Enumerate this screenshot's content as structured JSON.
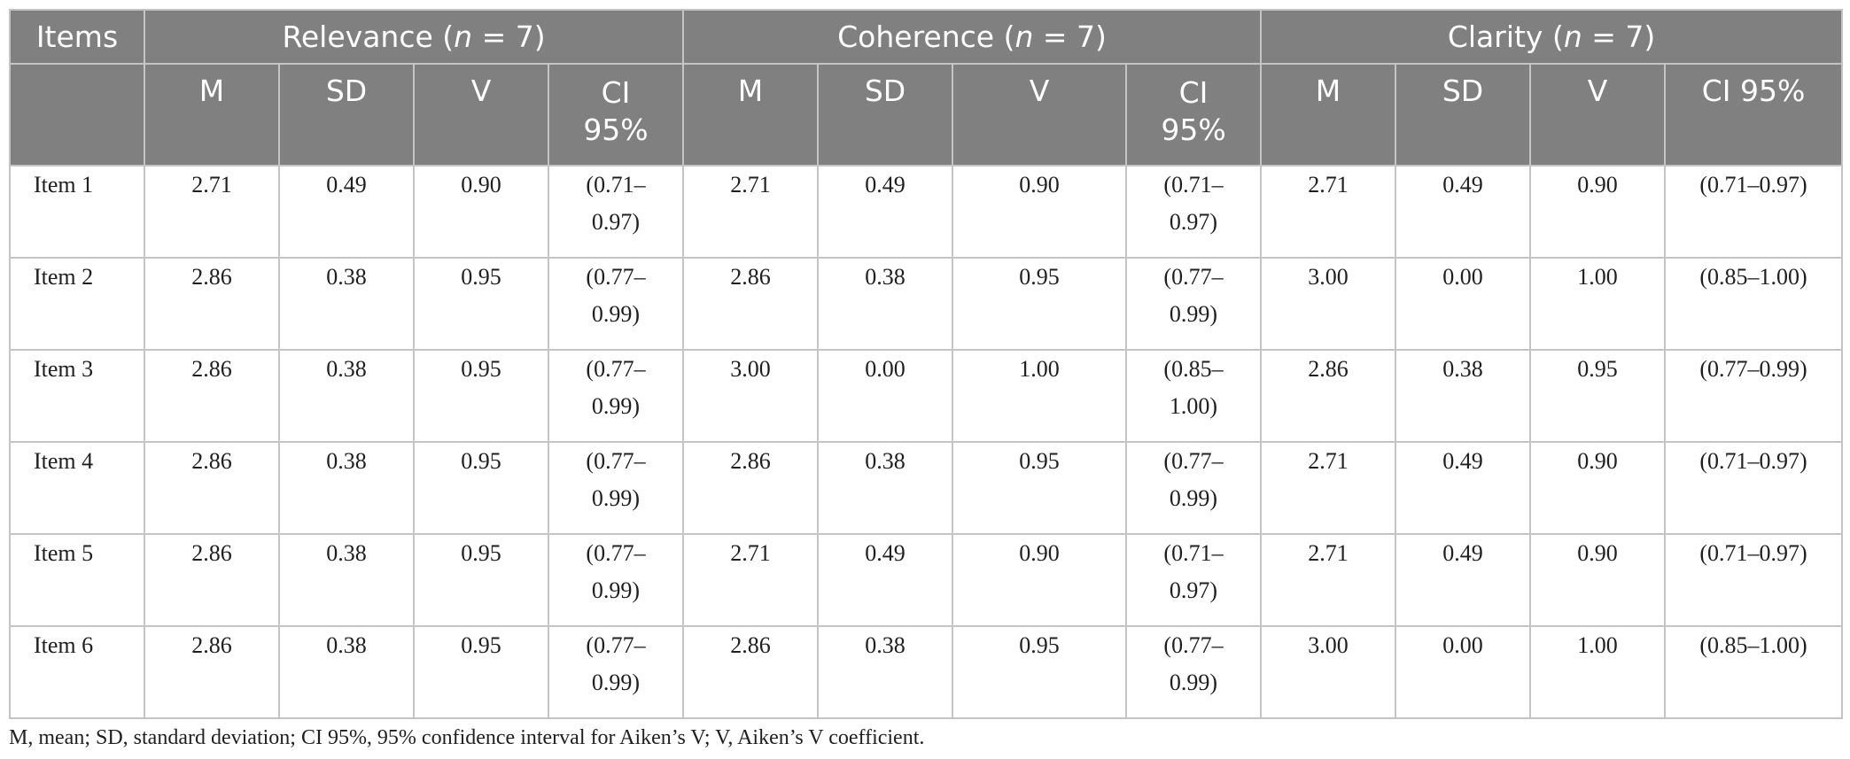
{
  "header": {
    "items_label": "Items",
    "groups": [
      {
        "name": "Relevance",
        "n_prefix": "(",
        "n_italic": "n",
        "n_suffix": " = 7)"
      },
      {
        "name": "Coherence",
        "n_prefix": "(",
        "n_italic": "n",
        "n_suffix": " = 7)"
      },
      {
        "name": "Clarity",
        "n_prefix": "(",
        "n_italic": "n",
        "n_suffix": " = 7)"
      }
    ],
    "subheaders": [
      "M",
      "SD",
      "V",
      "CI 95%",
      "M",
      "SD",
      "V",
      "CI 95%",
      "M",
      "SD",
      "V",
      "CI 95%"
    ]
  },
  "rows": [
    {
      "item": "Item 1",
      "relevance": [
        "2.71",
        "0.49",
        "0.90",
        "(0.71–0.97)"
      ],
      "coherence": [
        "2.71",
        "0.49",
        "0.90",
        "(0.71–0.97)"
      ],
      "clarity": [
        "2.71",
        "0.49",
        "0.90",
        "(0.71–0.97)"
      ]
    },
    {
      "item": "Item 2",
      "relevance": [
        "2.86",
        "0.38",
        "0.95",
        "(0.77–0.99)"
      ],
      "coherence": [
        "2.86",
        "0.38",
        "0.95",
        "(0.77–0.99)"
      ],
      "clarity": [
        "3.00",
        "0.00",
        "1.00",
        "(0.85–1.00)"
      ]
    },
    {
      "item": "Item 3",
      "relevance": [
        "2.86",
        "0.38",
        "0.95",
        "(0.77–0.99)"
      ],
      "coherence": [
        "3.00",
        "0.00",
        "1.00",
        "(0.85–1.00)"
      ],
      "clarity": [
        "2.86",
        "0.38",
        "0.95",
        "(0.77–0.99)"
      ]
    },
    {
      "item": "Item 4",
      "relevance": [
        "2.86",
        "0.38",
        "0.95",
        "(0.77–0.99)"
      ],
      "coherence": [
        "2.86",
        "0.38",
        "0.95",
        "(0.77–0.99)"
      ],
      "clarity": [
        "2.71",
        "0.49",
        "0.90",
        "(0.71–0.97)"
      ]
    },
    {
      "item": "Item 5",
      "relevance": [
        "2.86",
        "0.38",
        "0.95",
        "(0.77–0.99)"
      ],
      "coherence": [
        "2.71",
        "0.49",
        "0.90",
        "(0.71–0.97)"
      ],
      "clarity": [
        "2.71",
        "0.49",
        "0.90",
        "(0.71–0.97)"
      ]
    },
    {
      "item": "Item 6",
      "relevance": [
        "2.86",
        "0.38",
        "0.95",
        "(0.77–0.99)"
      ],
      "coherence": [
        "2.86",
        "0.38",
        "0.95",
        "(0.77–0.99)"
      ],
      "clarity": [
        "3.00",
        "0.00",
        "1.00",
        "(0.85–1.00)"
      ]
    }
  ],
  "footnote": "M, mean; SD, standard deviation; CI 95%, 95% confidence interval for Aiken’s V; V, Aiken’s V coefficient.",
  "colors": {
    "header_bg": "#808080",
    "header_text": "#ffffff",
    "grid": "#c4c4c4"
  }
}
